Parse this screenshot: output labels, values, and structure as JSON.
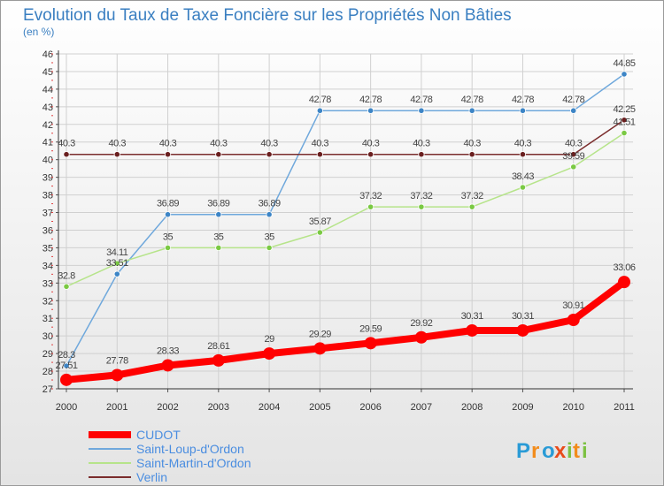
{
  "chart_data": {
    "type": "line",
    "title": "Evolution du Taux de Taxe Foncière sur les Propriétés Non Bâties",
    "subtitle": "(en %)",
    "xlabel": "",
    "ylabel": "",
    "categories": [
      "2000",
      "2001",
      "2002",
      "2003",
      "2004",
      "2005",
      "2006",
      "2007",
      "2008",
      "2009",
      "2010",
      "2011"
    ],
    "ylim": [
      27,
      46
    ],
    "yticks": [
      27,
      28,
      29,
      30,
      31,
      32,
      33,
      34,
      35,
      36,
      37,
      38,
      39,
      40,
      41,
      42,
      43,
      44,
      45,
      46
    ],
    "grid": true,
    "legend_position": "bottom-left",
    "series": [
      {
        "name": "Saint-Loup-d'Ordon",
        "color": "#6fa8dc",
        "marker_color": "#3d85c6",
        "values": [
          28.3,
          33.51,
          36.89,
          36.89,
          36.89,
          42.78,
          42.78,
          42.78,
          42.78,
          42.78,
          42.78,
          44.85
        ],
        "labels": [
          "28.3",
          "33.51",
          "36.89",
          "36.89",
          "36.89",
          "42.78",
          "42.78",
          "42.78",
          "42.78",
          "42.78",
          "42.78",
          "44.85"
        ]
      },
      {
        "name": "Saint-Martin-d'Ordon",
        "color": "#b6e48a",
        "marker_color": "#7ac943",
        "values": [
          32.8,
          34.11,
          35,
          35,
          35,
          35.87,
          37.32,
          37.32,
          37.32,
          38.43,
          39.59,
          41.51
        ],
        "labels": [
          "32.8",
          "34.11",
          "35",
          "35",
          "35",
          "35.87",
          "37.32",
          "37.32",
          "37.32",
          "38.43",
          "39.59",
          "41.51"
        ]
      },
      {
        "name": "Verlin",
        "color": "#7b2d2d",
        "marker_color": "#6a1f1f",
        "values": [
          40.3,
          40.3,
          40.3,
          40.3,
          40.3,
          40.3,
          40.3,
          40.3,
          40.3,
          40.3,
          40.3,
          42.25
        ],
        "labels": [
          "40.3",
          "40.3",
          "40.3",
          "40.3",
          "40.3",
          "40.3",
          "40.3",
          "40.3",
          "40.3",
          "40.3",
          "40.3",
          "42.25"
        ]
      },
      {
        "name": "CUDOT",
        "color": "#ff0000",
        "marker_color": "#ff0000",
        "thick": true,
        "values": [
          27.51,
          27.78,
          28.33,
          28.61,
          29,
          29.29,
          29.59,
          29.92,
          30.31,
          30.31,
          30.91,
          33.06
        ],
        "labels": [
          "27.51",
          "27.78",
          "28.33",
          "28.61",
          "29",
          "29.29",
          "29.59",
          "29.92",
          "30.31",
          "30.31",
          "30.91",
          "33.06"
        ]
      }
    ],
    "legend": [
      "CUDOT",
      "Saint-Loup-d'Ordon",
      "Saint-Martin-d'Ordon",
      "Verlin"
    ]
  },
  "brand": {
    "letters": [
      "P",
      "r",
      "o",
      "x",
      "i",
      "t",
      "i"
    ],
    "colors": [
      "#2a9bd6",
      "#f28c1c",
      "#2a9bd6",
      "#e94b1b",
      "#7cc142",
      "#f28c1c",
      "#7cc142"
    ]
  },
  "colors": {
    "title": "#3a7fc1",
    "axis": "#333333",
    "grid": "#cfcfcf",
    "legend_text": "#4a8de0",
    "background_top": "#ffffff",
    "background_bottom": "#e6e6e6"
  }
}
